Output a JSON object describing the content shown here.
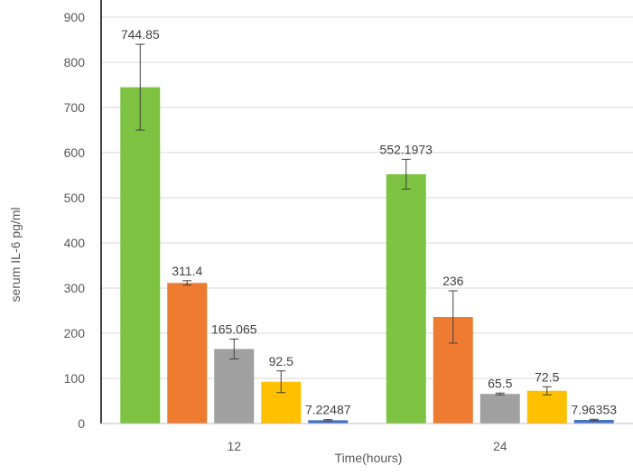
{
  "chart_data": {
    "type": "bar",
    "title": "",
    "xlabel": "Time(hours)",
    "ylabel": "serum IL-6 pg/ml",
    "ylim": [
      0,
      900
    ],
    "yticks": [
      0,
      100,
      200,
      300,
      400,
      500,
      600,
      700,
      800,
      900
    ],
    "grid": true,
    "legend": "none",
    "categories": [
      "12",
      "24"
    ],
    "series": [
      {
        "color": "#7dc241",
        "values": [
          744.85,
          552.1973
        ],
        "errors": [
          95,
          33
        ],
        "labels": [
          "744.85",
          "552.1973"
        ]
      },
      {
        "color": "#ee7b30",
        "values": [
          311.4,
          236
        ],
        "errors": [
          5,
          58
        ],
        "labels": [
          "311.4",
          "236"
        ]
      },
      {
        "color": "#a0a0a0",
        "values": [
          165.065,
          65.5
        ],
        "errors": [
          22,
          2
        ],
        "labels": [
          "165.065",
          "65.5"
        ]
      },
      {
        "color": "#ffc000",
        "values": [
          92.5,
          72.5
        ],
        "errors": [
          24,
          9
        ],
        "labels": [
          "92.5",
          "72.5"
        ]
      },
      {
        "color": "#4472c4",
        "values": [
          7.22487,
          7.96353
        ],
        "errors": [
          1.5,
          1.5
        ],
        "labels": [
          "7.22487",
          "7.96353"
        ]
      }
    ]
  }
}
